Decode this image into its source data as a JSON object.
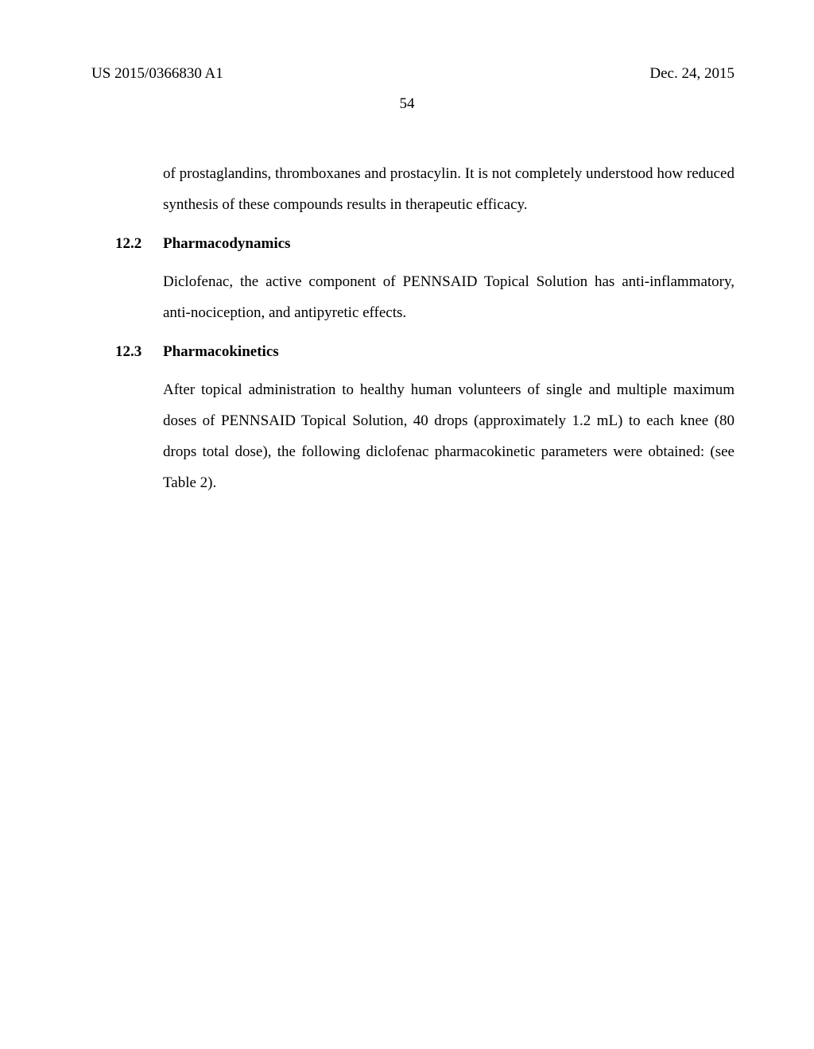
{
  "header": {
    "left": "US 2015/0366830 A1",
    "right": "Dec. 24, 2015",
    "page_number": "54"
  },
  "body": {
    "intro_para": "of prostaglandins, thromboxanes and prostacylin. It is not completely understood how reduced synthesis of these compounds results in therapeutic efficacy.",
    "sec_12_2": {
      "num": "12.2",
      "title": "Pharmacodynamics",
      "para": "Diclofenac, the active component of PENNSAID Topical Solution has anti-inflammatory, anti-nociception, and antipyretic effects."
    },
    "sec_12_3": {
      "num": "12.3",
      "title": "Pharmacokinetics",
      "para": "After topical administration to healthy human volunteers of single and multiple maximum doses of PENNSAID Topical Solution, 40 drops (approximately 1.2 mL) to each knee (80 drops total dose), the following diclofenac pharmacokinetic parameters were obtained: (see Table 2)."
    }
  },
  "style": {
    "background_color": "#ffffff",
    "text_color": "#000000",
    "body_fontsize": 19,
    "line_height": 2.05,
    "font_family": "Times New Roman"
  }
}
